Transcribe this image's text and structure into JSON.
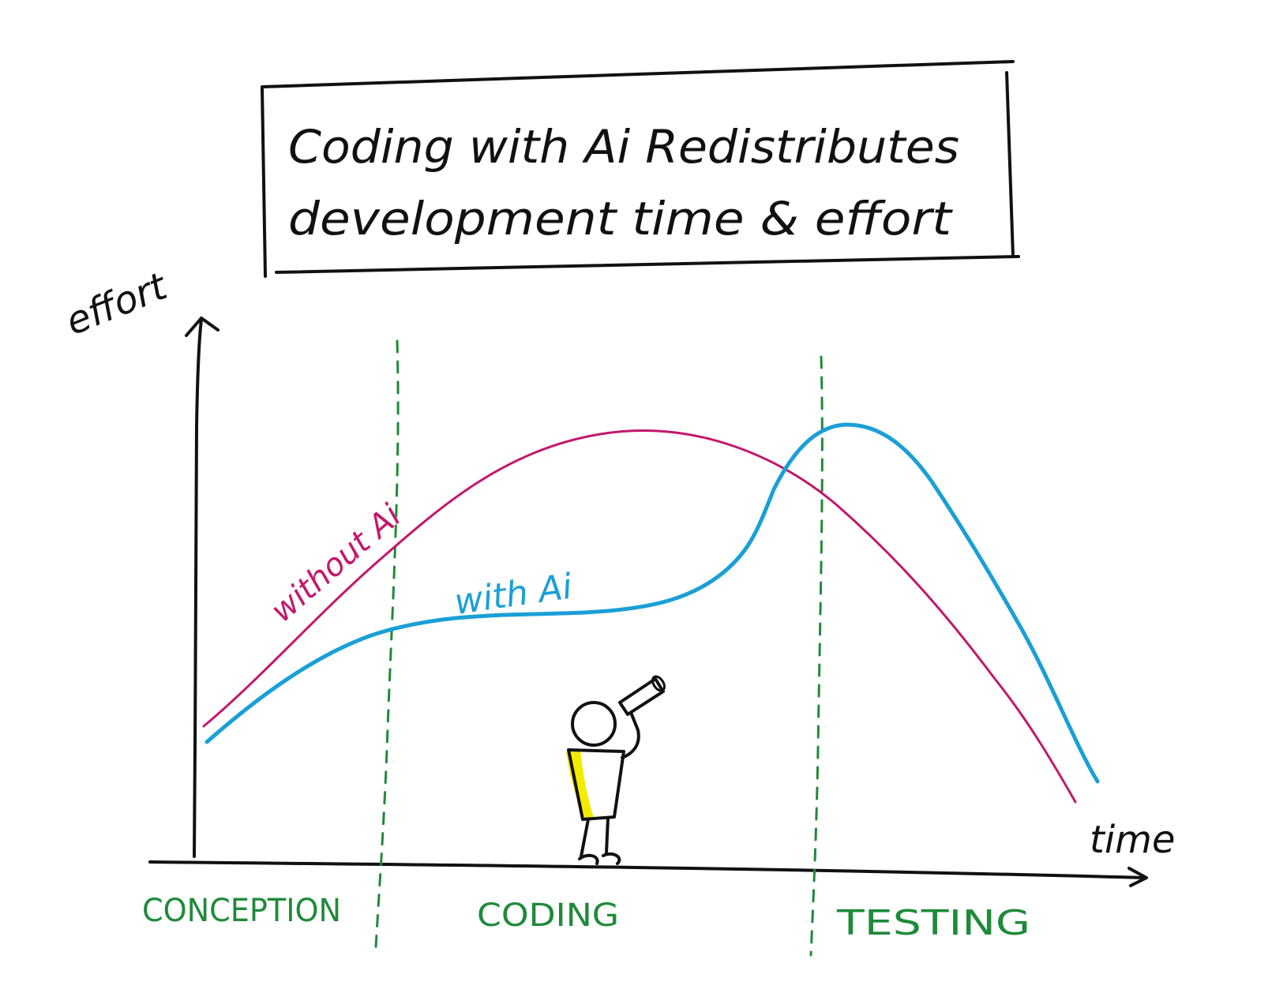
{
  "title": {
    "line1": "Coding with Ai Redistributes",
    "line2": "development time & effort"
  },
  "axes": {
    "y_label": "effort",
    "x_label": "time"
  },
  "phases": [
    {
      "label": "CONCEPTION"
    },
    {
      "label": "CODING"
    },
    {
      "label": "TESTING"
    }
  ],
  "curves": [
    {
      "label": "without Ai",
      "color": "#c2186b"
    },
    {
      "label": "with Ai",
      "color": "#1a9fd6"
    }
  ],
  "colors": {
    "ink": "#111111",
    "phase_green": "#1f8a3a",
    "highlight": "#f4ec00"
  },
  "figure": {
    "icon": "person-with-telescope-icon"
  }
}
